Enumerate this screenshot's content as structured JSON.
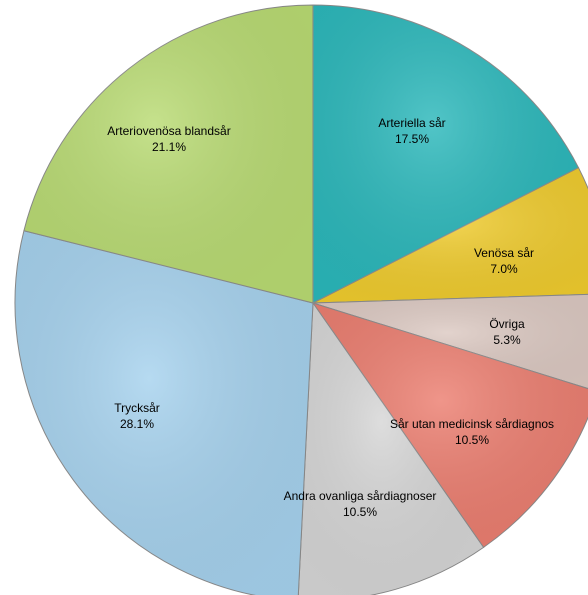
{
  "chart_data": {
    "type": "pie",
    "start_angle_deg": 0,
    "direction": "clockwise",
    "slices": [
      {
        "label": "Arteriella sår",
        "percent_label": "17.5%",
        "value": 17.5,
        "color": "#2bb8bb"
      },
      {
        "label": "Venösa sår",
        "percent_label": "7.0%",
        "value": 7.0,
        "color": "#f0cc2e"
      },
      {
        "label": "Övriga",
        "percent_label": "5.3%",
        "value": 5.3,
        "color": "#dcc9c2"
      },
      {
        "label": "Sår utan medicinsk sårdiagnos",
        "percent_label": "10.5%",
        "value": 10.5,
        "color": "#ec7e70"
      },
      {
        "label": "Andra ovanliga sårdiagnoser",
        "percent_label": "10.5%",
        "value": 10.5,
        "color": "#d6d6d6"
      },
      {
        "label": "Trycksår",
        "percent_label": "28.1%",
        "value": 28.1,
        "color": "#a6d2ee"
      },
      {
        "label": "Arteriovenösa blandsår",
        "percent_label": "21.1%",
        "value": 21.1,
        "color": "#b9db73"
      }
    ]
  }
}
